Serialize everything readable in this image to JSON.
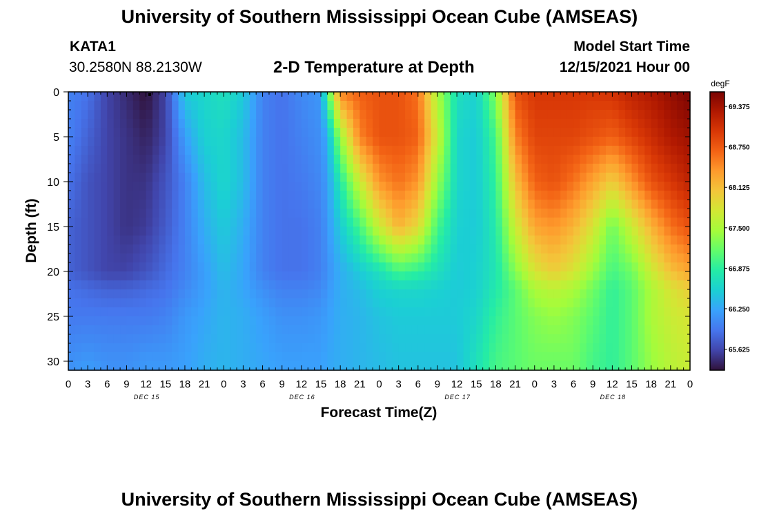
{
  "header": {
    "title": "University of Southern Mississippi Ocean Cube (AMSEAS)",
    "station": "KATA1",
    "coordinates": "30.2580N  88.2130W",
    "subtitle": "2-D Temperature at Depth",
    "model_start_label": "Model Start Time",
    "model_start_value": "12/15/2021 Hour 00"
  },
  "footer": {
    "title": "University of Southern Mississippi Ocean Cube (AMSEAS)"
  },
  "chart_data": {
    "type": "heatmap",
    "title": "2-D Temperature at Depth",
    "xlabel": "Forecast Time(Z)",
    "ylabel": "Depth (ft)",
    "x_hours_range": [
      0,
      96
    ],
    "ylim": [
      0,
      31
    ],
    "y_inverted": true,
    "x_tick_labels": [
      "0",
      "3",
      "6",
      "9",
      "12",
      "15",
      "18",
      "21",
      "0",
      "3",
      "6",
      "9",
      "12",
      "15",
      "18",
      "21",
      "0",
      "3",
      "6",
      "9",
      "12",
      "15",
      "18",
      "21",
      "0",
      "3",
      "6",
      "9",
      "12",
      "15",
      "18",
      "21",
      "0"
    ],
    "day_labels": [
      "DEC 15",
      "DEC 16",
      "DEC 17",
      "DEC 18"
    ],
    "y_ticks": [
      0,
      5,
      10,
      15,
      20,
      25,
      30
    ],
    "colorbar": {
      "unit": "degF",
      "min": 65.3,
      "max": 69.6,
      "tick_labels": [
        "69.375",
        "68.750",
        "68.125",
        "67.500",
        "66.875",
        "66.250",
        "65.625"
      ],
      "tick_values": [
        69.375,
        68.75,
        68.125,
        67.5,
        66.875,
        66.25,
        65.625
      ],
      "colors": [
        "#30123b",
        "#4145ab",
        "#4675ed",
        "#39a2fc",
        "#1bcfd4",
        "#24eca6",
        "#61fc6c",
        "#a4fc3b",
        "#d1e834",
        "#f3c63a",
        "#fe9b2d",
        "#f36315",
        "#d93806",
        "#b11901",
        "#7a0402"
      ]
    },
    "profile_hours": [
      0,
      3,
      6,
      9,
      12,
      15,
      18,
      21,
      24,
      27,
      30,
      33,
      36,
      39,
      40,
      42,
      45,
      48,
      51,
      54,
      57,
      60,
      63,
      66,
      69,
      72,
      75,
      78,
      81,
      84,
      87,
      90,
      93,
      96
    ],
    "profile_depths": [
      0,
      5,
      10,
      15,
      20,
      22,
      25,
      30,
      31
    ],
    "temperature_profiles": [
      [
        66.0,
        66.0,
        65.9,
        65.8,
        65.8,
        65.9,
        65.95,
        66.1,
        66.1
      ],
      [
        65.9,
        65.8,
        65.7,
        65.7,
        65.7,
        65.85,
        65.95,
        66.15,
        66.2
      ],
      [
        65.6,
        65.6,
        65.6,
        65.6,
        65.6,
        65.8,
        65.95,
        66.1,
        66.1
      ],
      [
        65.45,
        65.5,
        65.5,
        65.5,
        65.6,
        65.8,
        65.95,
        66.1,
        66.1
      ],
      [
        65.3,
        65.4,
        65.5,
        65.55,
        65.7,
        65.85,
        65.95,
        66.15,
        66.15
      ],
      [
        65.6,
        65.6,
        65.7,
        65.75,
        65.85,
        65.9,
        66.0,
        66.15,
        66.15
      ],
      [
        66.5,
        66.2,
        66.0,
        66.0,
        66.0,
        66.05,
        66.15,
        66.2,
        66.2
      ],
      [
        66.6,
        66.55,
        66.4,
        66.3,
        66.2,
        66.2,
        66.25,
        66.3,
        66.3
      ],
      [
        66.7,
        66.6,
        66.6,
        66.5,
        66.4,
        66.35,
        66.35,
        66.35,
        66.35
      ],
      [
        66.5,
        66.4,
        66.4,
        66.3,
        66.25,
        66.25,
        66.3,
        66.3,
        66.3
      ],
      [
        66.0,
        66.0,
        66.0,
        66.0,
        66.0,
        66.1,
        66.2,
        66.25,
        66.25
      ],
      [
        65.9,
        65.9,
        65.9,
        65.9,
        65.9,
        66.0,
        66.1,
        66.2,
        66.2
      ],
      [
        66.05,
        66.0,
        65.95,
        65.9,
        65.9,
        66.0,
        66.1,
        66.2,
        66.2
      ],
      [
        66.15,
        66.1,
        66.05,
        66.0,
        66.0,
        66.05,
        66.15,
        66.2,
        66.2
      ],
      [
        67.0,
        66.3,
        66.2,
        66.15,
        66.1,
        66.15,
        66.2,
        66.25,
        66.25
      ],
      [
        68.5,
        67.4,
        66.8,
        66.5,
        66.3,
        66.3,
        66.3,
        66.3,
        66.3
      ],
      [
        68.7,
        68.5,
        67.7,
        67.0,
        66.5,
        66.4,
        66.35,
        66.35,
        66.35
      ],
      [
        68.8,
        68.8,
        68.4,
        67.7,
        66.7,
        66.55,
        66.45,
        66.4,
        66.4
      ],
      [
        68.8,
        68.8,
        68.6,
        68.2,
        67.0,
        66.6,
        66.5,
        66.45,
        66.45
      ],
      [
        68.6,
        68.7,
        68.4,
        67.9,
        66.9,
        66.6,
        66.5,
        66.45,
        66.45
      ],
      [
        67.5,
        67.7,
        67.4,
        67.0,
        66.7,
        66.55,
        66.5,
        66.45,
        66.45
      ],
      [
        66.7,
        66.6,
        66.6,
        66.55,
        66.5,
        66.5,
        66.5,
        66.45,
        66.45
      ],
      [
        66.55,
        66.5,
        66.5,
        66.5,
        66.55,
        66.55,
        66.6,
        66.7,
        66.7
      ],
      [
        67.3,
        67.0,
        66.9,
        66.8,
        66.75,
        66.8,
        66.9,
        67.0,
        67.0
      ],
      [
        68.8,
        68.5,
        68.1,
        67.7,
        67.3,
        67.1,
        67.1,
        67.1,
        67.1
      ],
      [
        69.0,
        68.9,
        68.7,
        68.3,
        67.8,
        67.5,
        67.3,
        67.2,
        67.2
      ],
      [
        69.0,
        68.9,
        68.8,
        68.4,
        68.0,
        67.6,
        67.4,
        67.2,
        67.2
      ],
      [
        69.0,
        68.9,
        68.6,
        68.2,
        67.8,
        67.5,
        67.3,
        67.2,
        67.2
      ],
      [
        69.0,
        68.8,
        68.3,
        67.8,
        67.4,
        67.2,
        67.1,
        67.0,
        67.0
      ],
      [
        69.05,
        68.7,
        68.0,
        67.2,
        67.0,
        66.9,
        66.9,
        66.9,
        66.9
      ],
      [
        69.2,
        68.9,
        68.4,
        67.7,
        67.2,
        67.1,
        67.1,
        67.1,
        67.1
      ],
      [
        69.3,
        69.1,
        68.8,
        68.2,
        67.7,
        67.5,
        67.5,
        67.4,
        67.4
      ],
      [
        69.45,
        69.3,
        69.0,
        68.6,
        68.1,
        67.8,
        67.7,
        67.6,
        67.6
      ],
      [
        69.6,
        69.4,
        69.2,
        68.8,
        68.3,
        68.0,
        67.8,
        67.7,
        67.7
      ]
    ]
  }
}
